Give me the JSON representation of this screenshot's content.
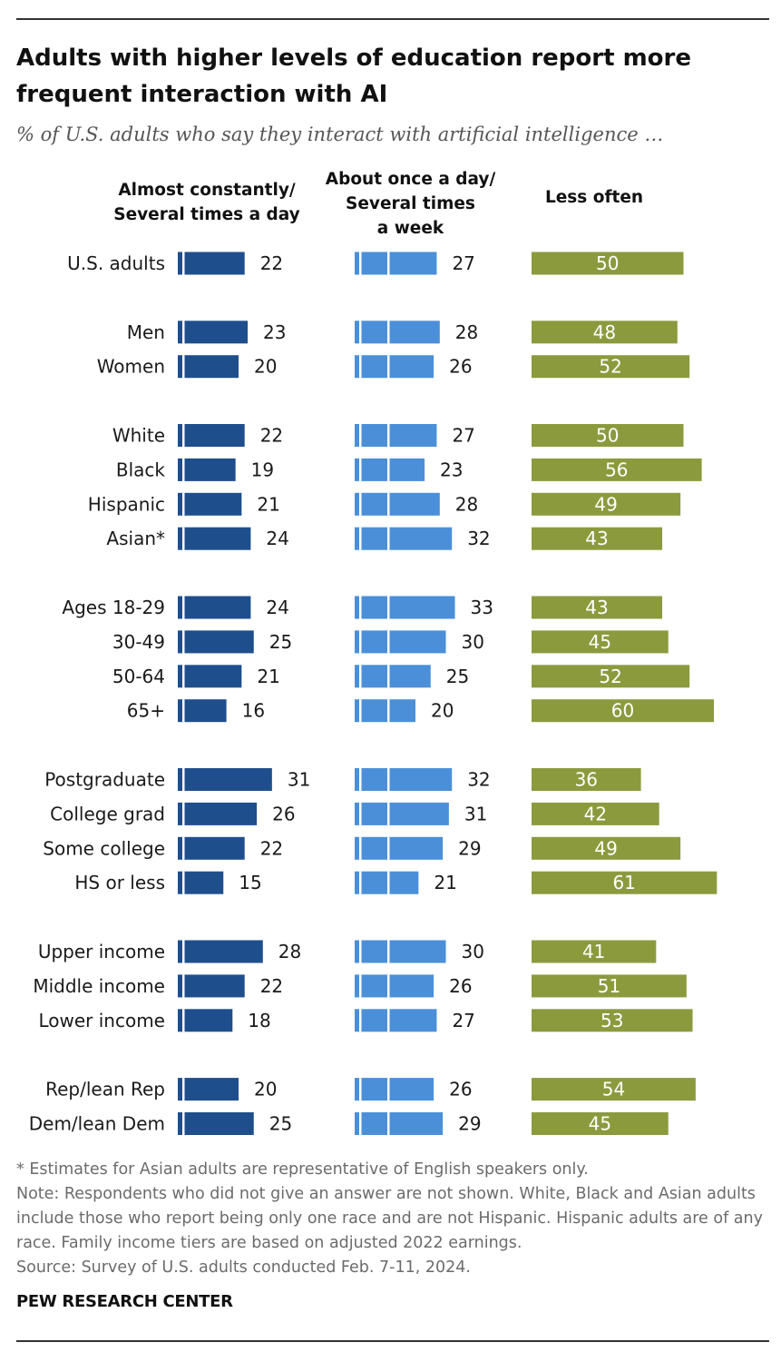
{
  "title": "Adults with higher levels of education report more frequent interaction with AI",
  "subtitle": "% of U.S. adults who say they interact with artificial intelligence …",
  "column_headers": {
    "col1": "Almost constantly/ Several times a day",
    "col2": "About once a day/ Several times a week",
    "col3": "Less often"
  },
  "chart_data": {
    "type": "bar",
    "title": "Adults with higher levels of education report more frequent interaction with AI",
    "groups": [
      [
        "U.S. adults"
      ],
      [
        "Men",
        "Women"
      ],
      [
        "White",
        "Black",
        "Hispanic",
        "Asian*"
      ],
      [
        "Ages 18-29",
        "30-49",
        "50-64",
        "65+"
      ],
      [
        "Postgraduate",
        "College grad",
        "Some college",
        "HS or less"
      ],
      [
        "Upper income",
        "Middle income",
        "Lower income"
      ],
      [
        "Rep/lean Rep",
        "Dem/lean Dem"
      ]
    ],
    "categories": [
      "U.S. adults",
      "Men",
      "Women",
      "White",
      "Black",
      "Hispanic",
      "Asian*",
      "Ages 18-29",
      "30-49",
      "50-64",
      "65+",
      "Postgraduate",
      "College grad",
      "Some college",
      "HS or less",
      "Upper income",
      "Middle income",
      "Lower income",
      "Rep/lean Rep",
      "Dem/lean Dem"
    ],
    "series": [
      {
        "name": "Almost constantly/Several times a day",
        "color": "#1f4e8c",
        "values": [
          22,
          23,
          20,
          22,
          19,
          21,
          24,
          24,
          25,
          21,
          16,
          31,
          26,
          22,
          15,
          28,
          22,
          18,
          20,
          25
        ]
      },
      {
        "name": "About once a day/Several times a week",
        "color": "#4a8fd8",
        "values": [
          27,
          28,
          26,
          27,
          23,
          28,
          32,
          33,
          30,
          25,
          20,
          32,
          31,
          29,
          21,
          30,
          26,
          27,
          26,
          29
        ]
      },
      {
        "name": "Less often",
        "color": "#8c9a3e",
        "values": [
          50,
          48,
          52,
          50,
          56,
          49,
          43,
          43,
          45,
          52,
          60,
          36,
          42,
          49,
          61,
          41,
          51,
          53,
          54,
          45
        ]
      }
    ],
    "xlim": [
      0,
      100
    ]
  },
  "notes": [
    "* Estimates for Asian adults are representative of English speakers only.",
    "Note: Respondents who did not give an answer are not shown. White, Black and Asian adults include those who report being only one race and are not Hispanic. Hispanic adults are of any race. Family income tiers are based on adjusted 2022 earnings.",
    "Source: Survey of U.S. adults conducted Feb. 7-11, 2024."
  ],
  "brand": "PEW RESEARCH CENTER",
  "colors": {
    "dark_blue": "#1f4e8c",
    "light_blue": "#4a8fd8",
    "olive": "#8c9a3e"
  }
}
